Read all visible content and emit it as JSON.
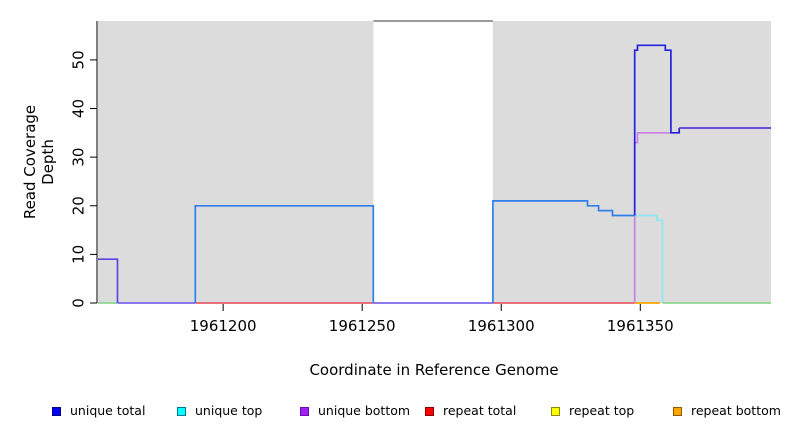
{
  "chart_data": {
    "type": "line",
    "subtype": "step-coverage",
    "title": "",
    "xlabel": "Coordinate in Reference Genome",
    "ylabel": "Read Coverage Depth",
    "xlim": [
      1961155,
      1961397
    ],
    "ylim": [
      0,
      58
    ],
    "x_ticks": [
      "1961200",
      "1961250",
      "1961300",
      "1961350"
    ],
    "x_tick_values": [
      1961200,
      1961250,
      1961300,
      1961350
    ],
    "y_ticks": [
      "0",
      "10",
      "20",
      "30",
      "40",
      "50"
    ],
    "y_tick_values": [
      0,
      10,
      20,
      30,
      40,
      50
    ],
    "grid": false,
    "plot_background": "#DCDCDC",
    "gap_band": {
      "x1": 1961254,
      "x2": 1961297,
      "color": "#FFFFFF"
    },
    "axis_color": "#000000",
    "series": [
      {
        "name": "baseline-green-left",
        "color": "#8FD38F",
        "points": [
          [
            1961155,
            0
          ],
          [
            1961162,
            0
          ]
        ]
      },
      {
        "name": "unique-level-9",
        "color": "#5B46E0",
        "points": [
          [
            1961155,
            9
          ],
          [
            1961162,
            9
          ],
          [
            1961162,
            0
          ]
        ]
      },
      {
        "name": "baseline-violet-left",
        "color": "#7B68EE",
        "points": [
          [
            1961162,
            0
          ],
          [
            1961190,
            0
          ]
        ]
      },
      {
        "name": "baseline-red-left",
        "color": "#E85F6E",
        "points": [
          [
            1961190,
            0
          ],
          [
            1961254,
            0
          ]
        ]
      },
      {
        "name": "unique-total-box-20",
        "color": "#2F7FE8",
        "points": [
          [
            1961190,
            0
          ],
          [
            1961190,
            20
          ],
          [
            1961254,
            20
          ],
          [
            1961254,
            0
          ]
        ]
      },
      {
        "name": "baseline-violet-gap",
        "color": "#7B68EE",
        "points": [
          [
            1961254,
            0
          ],
          [
            1961297,
            0
          ]
        ]
      },
      {
        "name": "clipped-gray-top",
        "color": "#8C8C8C",
        "points": [
          [
            1961254,
            58
          ],
          [
            1961297,
            58
          ]
        ]
      },
      {
        "name": "baseline-red-right",
        "color": "#E85F6E",
        "points": [
          [
            1961297,
            0
          ],
          [
            1961348,
            0
          ]
        ]
      },
      {
        "name": "unique-total-steps",
        "color": "#2F7FE8",
        "points": [
          [
            1961297,
            0
          ],
          [
            1961297,
            21
          ],
          [
            1961331,
            21
          ],
          [
            1961331,
            20
          ],
          [
            1961335,
            20
          ],
          [
            1961335,
            19
          ],
          [
            1961340,
            19
          ],
          [
            1961340,
            18
          ],
          [
            1961348,
            18
          ]
        ]
      },
      {
        "name": "unique-top-box",
        "color": "#8DE6F0",
        "points": [
          [
            1961348,
            0
          ],
          [
            1961348,
            18
          ],
          [
            1961356,
            18
          ],
          [
            1961356,
            17
          ],
          [
            1961358,
            17
          ],
          [
            1961358,
            0
          ]
        ]
      },
      {
        "name": "unique-bottom-rise",
        "color": "#C981E8",
        "points": [
          [
            1961348,
            0
          ],
          [
            1961348,
            33
          ],
          [
            1961349,
            33
          ],
          [
            1961349,
            35
          ],
          [
            1961361,
            35
          ]
        ]
      },
      {
        "name": "baseline-orange",
        "color": "#FFA500",
        "points": [
          [
            1961348,
            0
          ],
          [
            1961357,
            0
          ]
        ]
      },
      {
        "name": "baseline-green-right",
        "color": "#8FD38F",
        "points": [
          [
            1961358,
            0
          ],
          [
            1961397,
            0
          ]
        ]
      },
      {
        "name": "unique-total-spike",
        "color": "#2323DD",
        "points": [
          [
            1961348,
            18
          ],
          [
            1961348,
            52
          ],
          [
            1961349,
            52
          ],
          [
            1961349,
            53
          ],
          [
            1961359,
            53
          ],
          [
            1961359,
            52
          ],
          [
            1961361,
            52
          ],
          [
            1961361,
            35
          ],
          [
            1961364,
            35
          ],
          [
            1961364,
            36
          ]
        ]
      },
      {
        "name": "merged-level-36",
        "color": "#5B35D5",
        "points": [
          [
            1961364,
            36
          ],
          [
            1961397,
            36
          ]
        ]
      }
    ],
    "legend_position": "bottom",
    "legend": [
      {
        "label": "unique total",
        "fill": "#0000EE",
        "border": "#00008B"
      },
      {
        "label": "unique top",
        "fill": "#00FFFF",
        "border": "#007A8A"
      },
      {
        "label": "unique bottom",
        "fill": "#A020F0",
        "border": "#6A0DAD"
      },
      {
        "label": "repeat total",
        "fill": "#FF0000",
        "border": "#8B0000"
      },
      {
        "label": "repeat top",
        "fill": "#FFFF00",
        "border": "#8B8B00"
      },
      {
        "label": "repeat bottom",
        "fill": "#FFA500",
        "border": "#8B5A00"
      }
    ]
  }
}
